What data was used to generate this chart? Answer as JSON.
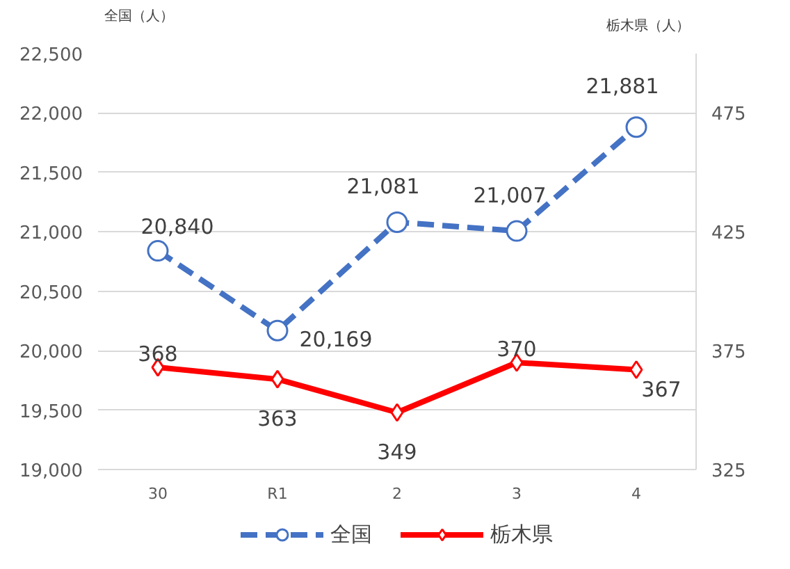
{
  "chart_data": {
    "type": "line",
    "ylabel": "全国（人）",
    "y2label": "栃木県（人）",
    "categories": [
      "30",
      "R1",
      "2",
      "3",
      "4"
    ],
    "series": [
      {
        "name": "全国",
        "color": "#4472c4",
        "values": [
          20840,
          20169,
          21081,
          21007,
          21881
        ],
        "value_labels": [
          "20,840",
          "20,169",
          "21,081",
          "21,007",
          "21,881"
        ],
        "marker": "circle",
        "line_style": "dashed"
      },
      {
        "name": "栃木県",
        "color": "#ff0000",
        "values": [
          368,
          363,
          349,
          370,
          367
        ],
        "marker": "diamond",
        "line_style": "solid",
        "axis": "y2"
      }
    ],
    "ylim": [
      19000,
      22500
    ],
    "yticks": [
      {
        "value": 19000,
        "label": "19,000"
      },
      {
        "value": 19500,
        "label": "19,500"
      },
      {
        "value": 20000,
        "label": "20,000"
      },
      {
        "value": 20500,
        "label": "20,500"
      },
      {
        "value": 21000,
        "label": "21,000"
      },
      {
        "value": 21500,
        "label": "21,500"
      },
      {
        "value": 22000,
        "label": "22,000"
      },
      {
        "value": 22500,
        "label": "22,500"
      }
    ],
    "y2lim": [
      325,
      500
    ],
    "y2ticks": [
      325,
      375,
      425,
      475
    ],
    "grid": "y",
    "legend": "bottom",
    "data_labels": true
  }
}
